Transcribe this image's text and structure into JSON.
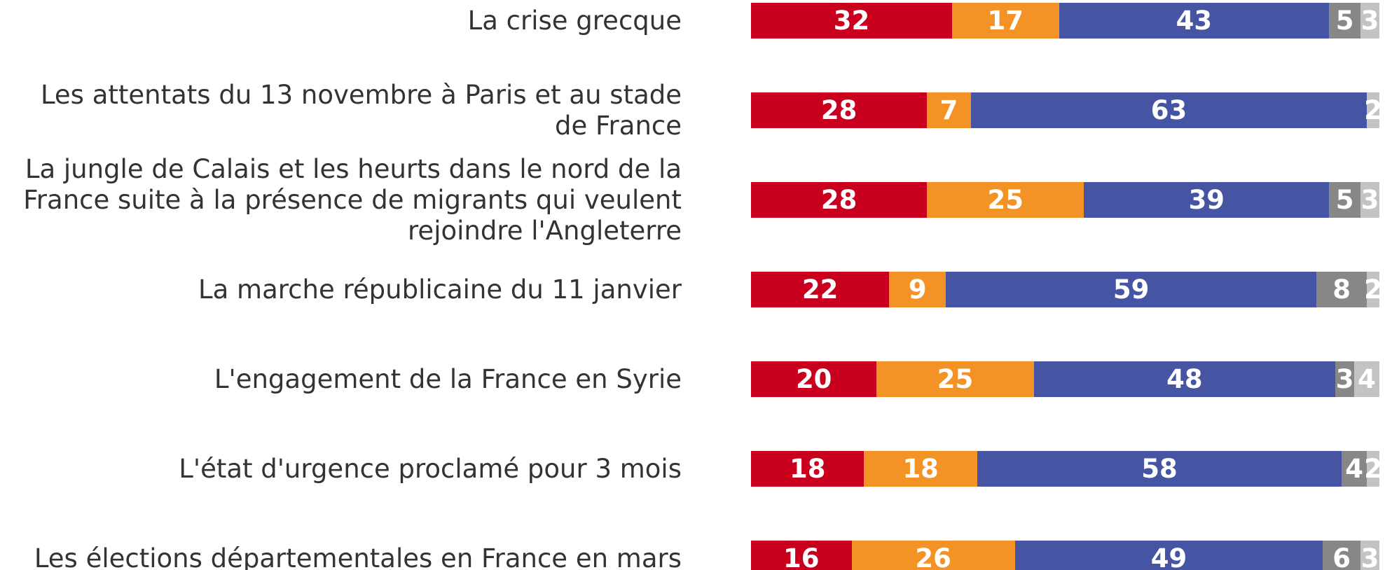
{
  "chart_data": {
    "type": "stacked-bar-horizontal",
    "categories": [
      "La crise grecque",
      "Les attentats du 13 novembre à Paris et au stade de France",
      "La jungle de Calais et les heurts dans le nord de la France suite à la présence de migrants qui veulent rejoindre l'Angleterre",
      "La marche républicaine du 11 janvier",
      "L'engagement de la France en Syrie",
      "L'état d'urgence proclamé pour 3 mois",
      "Les élections départementales en France en mars"
    ],
    "series": [
      {
        "color": "#c8001e",
        "values": [
          32,
          28,
          28,
          22,
          20,
          18,
          16
        ]
      },
      {
        "color": "#f39325",
        "values": [
          17,
          7,
          25,
          9,
          25,
          18,
          26
        ]
      },
      {
        "color": "#4654a4",
        "values": [
          43,
          63,
          39,
          59,
          48,
          58,
          49
        ]
      },
      {
        "color": "#878787",
        "values": [
          5,
          0,
          5,
          8,
          3,
          4,
          6
        ]
      },
      {
        "color": "#c3c3c3",
        "values": [
          3,
          2,
          3,
          2,
          4,
          2,
          3
        ]
      }
    ],
    "xlim": [
      0,
      100
    ]
  }
}
